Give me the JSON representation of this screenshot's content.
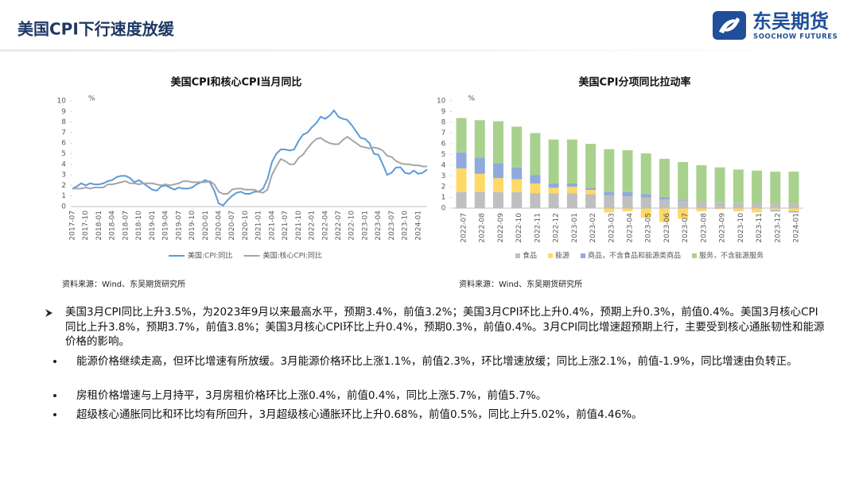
{
  "header": {
    "title": "美国CPI下行速度放缓",
    "logo": {
      "name": "东吴期货",
      "subtitle": "SOOCHOW FUTURES"
    }
  },
  "chart_data": [
    {
      "type": "line",
      "title": "美国CPI和核心CPI当月同比",
      "unit": "%",
      "source": "资料来源：Wind、东吴期货研究所",
      "legend": "bottom",
      "categories": [
        "2017-07",
        null,
        null,
        "2017-10",
        null,
        null,
        "2018-01",
        null,
        null,
        "2018-04",
        null,
        null,
        "2018-07",
        null,
        null,
        "2018-10",
        null,
        null,
        "2019-01",
        null,
        null,
        "2019-04",
        null,
        null,
        "2019-07",
        null,
        null,
        "2019-10",
        null,
        null,
        "2020-01",
        null,
        null,
        "2020-04",
        null,
        null,
        "2020-07",
        null,
        null,
        "2020-10",
        null,
        null,
        "2021-01",
        null,
        null,
        "2021-04",
        null,
        null,
        "2021-07",
        null,
        null,
        "2021-10",
        null,
        null,
        "2022-01",
        null,
        null,
        "2022-04",
        null,
        null,
        "2022-07",
        null,
        null,
        "2022-10",
        null,
        null,
        "2023-01",
        null,
        null,
        "2023-04",
        null,
        null,
        "2023-07",
        null,
        null,
        "2023-10",
        null,
        null,
        "2024-01",
        null,
        null
      ],
      "series": [
        {
          "name": "美国:CPI:同比",
          "color": "#5b9bd5",
          "values": [
            1.7,
            1.9,
            2.2,
            2.0,
            2.2,
            2.1,
            2.1,
            2.2,
            2.4,
            2.5,
            2.8,
            2.9,
            2.9,
            2.7,
            2.3,
            2.5,
            2.2,
            1.9,
            1.6,
            1.5,
            1.9,
            2.0,
            1.8,
            1.6,
            1.8,
            1.7,
            1.7,
            1.8,
            2.1,
            2.3,
            2.5,
            2.3,
            1.5,
            0.3,
            0.1,
            0.6,
            1.0,
            1.3,
            1.4,
            1.2,
            1.2,
            1.4,
            1.4,
            1.7,
            2.6,
            4.2,
            5.0,
            5.4,
            5.4,
            5.3,
            5.4,
            6.2,
            6.8,
            7.0,
            7.5,
            7.9,
            8.5,
            8.3,
            8.6,
            9.1,
            8.5,
            8.3,
            8.2,
            7.7,
            7.1,
            6.5,
            6.4,
            6.0,
            5.0,
            4.9,
            4.0,
            3.0,
            3.2,
            3.7,
            3.7,
            3.2,
            3.1,
            3.4,
            3.1,
            3.2,
            3.5
          ]
        },
        {
          "name": "美国:核心CPI:同比",
          "color": "#a5a5a5",
          "values": [
            1.7,
            1.7,
            1.7,
            1.8,
            1.7,
            1.8,
            1.8,
            1.8,
            2.1,
            2.1,
            2.2,
            2.3,
            2.4,
            2.2,
            2.2,
            2.1,
            2.2,
            2.2,
            2.2,
            2.1,
            2.0,
            2.1,
            2.0,
            2.1,
            2.2,
            2.4,
            2.4,
            2.3,
            2.3,
            2.3,
            2.3,
            2.4,
            2.1,
            1.4,
            1.2,
            1.2,
            1.6,
            1.7,
            1.7,
            1.6,
            1.6,
            1.6,
            1.4,
            1.3,
            1.6,
            3.0,
            3.8,
            4.5,
            4.3,
            4.0,
            4.0,
            4.6,
            4.9,
            5.5,
            6.0,
            6.4,
            6.5,
            6.2,
            6.0,
            5.9,
            5.9,
            6.3,
            6.6,
            6.3,
            6.0,
            5.7,
            5.6,
            5.5,
            5.6,
            5.5,
            5.3,
            4.8,
            4.7,
            4.3,
            4.1,
            4.0,
            4.0,
            3.9,
            3.9,
            3.8,
            3.8
          ]
        }
      ],
      "ylim": [
        0,
        10
      ],
      "yticks": [
        0,
        1,
        2,
        3,
        4,
        5,
        6,
        7,
        8,
        9,
        10
      ]
    },
    {
      "type": "stacked_bar",
      "title": "美国CPI分项同比拉动率",
      "unit": "%",
      "source": "资料来源：Wind、东吴期货研究所",
      "legend": "bottom",
      "categories": [
        "2022-07",
        "2022-08",
        "2022-09",
        "2022-10",
        "2022-11",
        "2022-12",
        "2023-01",
        "2023-02",
        "2023-03",
        "2023-04",
        "2023-05",
        "2023-06",
        "2023-07",
        "2023-08",
        "2023-09",
        "2023-10",
        "2023-11",
        "2023-12",
        "2024-01"
      ],
      "series": [
        {
          "name": "食品",
          "color": "#bfbfbf",
          "values": [
            1.5,
            1.5,
            1.5,
            1.5,
            1.4,
            1.4,
            1.4,
            1.3,
            1.2,
            1.1,
            1.0,
            0.8,
            0.7,
            0.6,
            0.5,
            0.5,
            0.4,
            0.4,
            0.4
          ]
        },
        {
          "name": "能源",
          "color": "#ffd966",
          "values": [
            2.2,
            1.7,
            1.3,
            1.2,
            0.9,
            0.5,
            0.6,
            0.4,
            -0.4,
            -0.3,
            -0.9,
            -1.3,
            -1.0,
            -0.3,
            -0.1,
            -0.3,
            -0.4,
            -0.2,
            -0.3
          ]
        },
        {
          "name": "商品，不含食品和能源类商品",
          "color": "#8faadc",
          "values": [
            1.5,
            1.5,
            1.4,
            1.1,
            0.8,
            0.4,
            0.3,
            0.2,
            0.3,
            0.4,
            0.3,
            0.2,
            0.1,
            0.0,
            0.0,
            0.0,
            0.0,
            -0.1,
            -0.1
          ]
        },
        {
          "name": "服务，不含能源服务",
          "color": "#a9d18e",
          "values": [
            3.2,
            3.5,
            3.9,
            3.8,
            3.9,
            4.1,
            4.1,
            4.1,
            4.0,
            3.9,
            3.8,
            3.6,
            3.5,
            3.4,
            3.3,
            3.1,
            3.1,
            3.0,
            3.0
          ]
        }
      ],
      "ylim": [
        -1.5,
        10
      ],
      "yticks": [
        0,
        1,
        2,
        3,
        4,
        5,
        6,
        7,
        8,
        9,
        10
      ]
    }
  ],
  "bullets": [
    "美国3月CPI同比上升3.5%，为2023年9月以来最高水平，预期3.4%，前值3.2%；美国3月CPI环比上升0.4%，预期上升0.3%，前值0.4%。美国3月核心CPI同比上升3.8%，预期3.7%，前值3.8%；美国3月核心CPI环比上升0.4%，预期0.3%，前值0.4%。3月CPI同比增速超预期上行，主要受到核心通胀韧性和能源价格的影响。",
    "能源价格继续走高，但环比增速有所放缓。3月能源价格环比上涨1.1%，前值2.3%，环比增速放缓；同比上涨2.1%，前值-1.9%，同比增速由负转正。",
    "房租价格增速与上月持平，3月房租价格环比上涨0.4%，前值0.4%，同比上涨5.7%，前值5.7%。",
    "超级核心通胀同比和环比均有所回升，3月超级核心通胀环比上升0.68%，前值0.5%，同比上升5.02%，前值4.46%。"
  ]
}
